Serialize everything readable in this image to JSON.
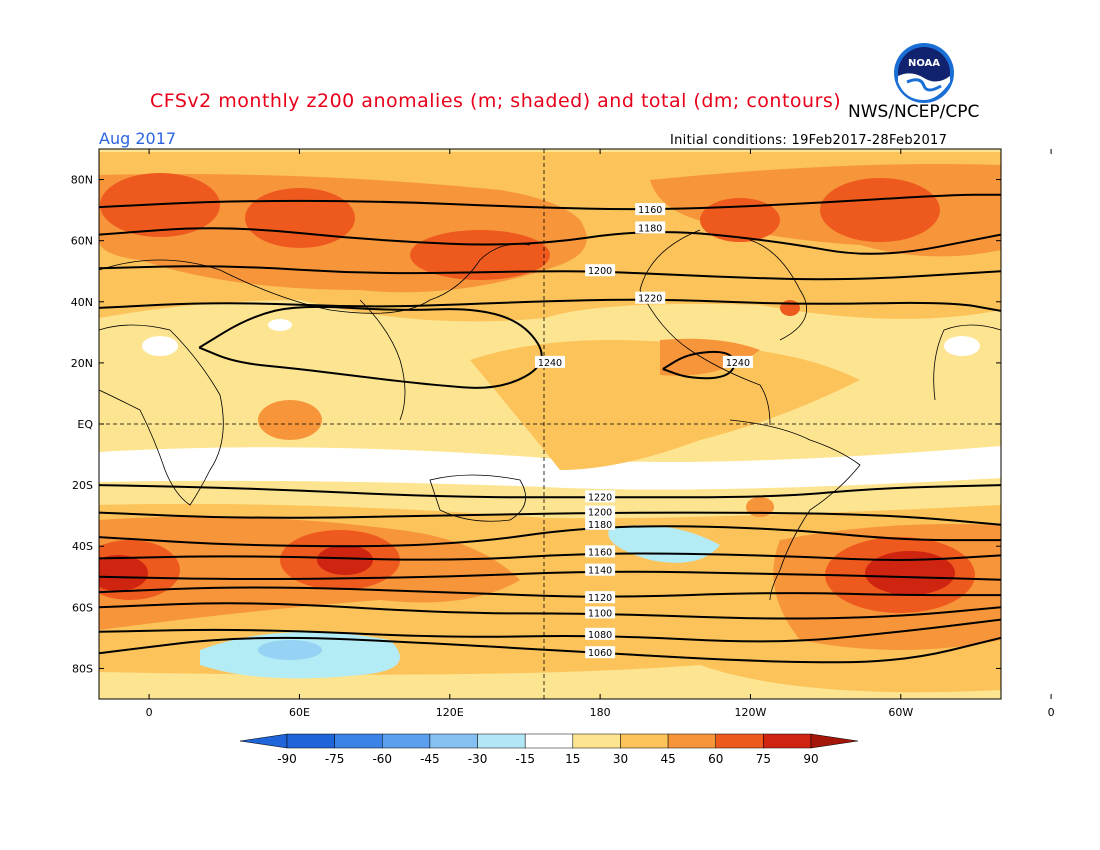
{
  "title": "CFSv2 monthly z200 anomalies (m; shaded) and total (dm; contours)",
  "agency": "NWS/NCEP/CPC",
  "valid_month": "Aug 2017",
  "initial_conditions": "Initial conditions: 19Feb2017-28Feb2017",
  "logo_text": "NOAA",
  "colors": {
    "title": "#e8001a",
    "month": "#2b63e0",
    "a15_30": "#fde490",
    "a30_45": "#fbc359",
    "a45_60": "#f7953a",
    "a60_75": "#ee5a1e",
    "a75_90": "#cf2410",
    "an15_30": "#b4ecf6",
    "an30_45": "#96d2f3",
    "neutral": "#ffffff"
  },
  "chart_data": {
    "type": "heatmap",
    "projection": "cylindrical equidistant",
    "lon_labels": [
      "0",
      "60E",
      "120E",
      "180",
      "120W",
      "60W",
      "0"
    ],
    "lat_labels": [
      "80N",
      "60N",
      "40N",
      "20N",
      "EQ",
      "20S",
      "40S",
      "60S",
      "80S"
    ],
    "colorbar": {
      "ticks": [
        "-90",
        "-75",
        "-60",
        "-45",
        "-30",
        "-15",
        "15",
        "30",
        "45",
        "60",
        "75",
        "90"
      ],
      "colors": [
        "#1f64d8",
        "#3b82e6",
        "#5b9fee",
        "#86bff2",
        "#b3e6f6",
        "#ffffff",
        "#fde490",
        "#fbc359",
        "#f7953a",
        "#ee5a1e",
        "#cf2410"
      ]
    },
    "contour_labels": [
      "1160",
      "1180",
      "1200",
      "1220",
      "1240",
      "1220",
      "1200",
      "1180",
      "1160",
      "1140",
      "1120",
      "1100",
      "1080",
      "1060"
    ],
    "contours": [
      {
        "value": "1160",
        "lon": [
          -20,
          30,
          90,
          150,
          200,
          260,
          320,
          340
        ],
        "lat": [
          71,
          73,
          73,
          71,
          70,
          72,
          75,
          75
        ]
      },
      {
        "value": "1180",
        "lon": [
          -20,
          30,
          90,
          150,
          200,
          250,
          290,
          340
        ],
        "lat": [
          62,
          65,
          60,
          58,
          64,
          60,
          54,
          62
        ]
      },
      {
        "value": "1200",
        "lon": [
          -20,
          30,
          90,
          150,
          180,
          230,
          280,
          340
        ],
        "lat": [
          51,
          52,
          49,
          50,
          50,
          48,
          47,
          50
        ]
      },
      {
        "value": "1220",
        "lon": [
          -20,
          30,
          90,
          150,
          200,
          260,
          320,
          340
        ],
        "lat": [
          38,
          40,
          38,
          40,
          41,
          39,
          40,
          37
        ]
      },
      {
        "value": "1240",
        "lon": [
          20,
          40,
          60,
          100,
          130,
          150,
          160,
          140,
          110,
          80,
          60,
          35,
          20
        ],
        "lat": [
          25,
          35,
          39,
          37,
          38,
          33,
          20,
          11,
          13,
          16,
          18,
          20,
          25
        ]
      },
      {
        "value": "1240",
        "lon": [
          205,
          215,
          230,
          235,
          230,
          215,
          205
        ],
        "lat": [
          18,
          23,
          24,
          20,
          15,
          15,
          18
        ]
      },
      {
        "value": "1220",
        "lon": [
          -20,
          40,
          120,
          180,
          250,
          290,
          340
        ],
        "lat": [
          -20,
          -21,
          -24,
          -24,
          -24,
          -21,
          -20
        ]
      },
      {
        "value": "1200",
        "lon": [
          -20,
          40,
          120,
          180,
          250,
          300,
          340
        ],
        "lat": [
          -29,
          -31,
          -30,
          -29,
          -29,
          -30,
          -33
        ]
      },
      {
        "value": "1180",
        "lon": [
          -20,
          40,
          120,
          180,
          250,
          300,
          340
        ],
        "lat": [
          -37,
          -40,
          -40,
          -33,
          -34,
          -38,
          -38
        ]
      },
      {
        "value": "1160",
        "lon": [
          -20,
          40,
          120,
          180,
          250,
          300,
          340
        ],
        "lat": [
          -44,
          -43,
          -45,
          -42,
          -43,
          -45,
          -43
        ]
      },
      {
        "value": "1140",
        "lon": [
          -20,
          40,
          120,
          180,
          250,
          300,
          340
        ],
        "lat": [
          -50,
          -51,
          -50,
          -48,
          -49,
          -50,
          -51
        ]
      },
      {
        "value": "1120",
        "lon": [
          -20,
          40,
          120,
          180,
          250,
          300,
          340
        ],
        "lat": [
          -55,
          -53,
          -55,
          -57,
          -55,
          -56,
          -56
        ]
      },
      {
        "value": "1100",
        "lon": [
          -20,
          40,
          120,
          180,
          250,
          300,
          340
        ],
        "lat": [
          -60,
          -58,
          -62,
          -62,
          -64,
          -63,
          -60
        ]
      },
      {
        "value": "1080",
        "lon": [
          -20,
          40,
          120,
          180,
          250,
          300,
          340
        ],
        "lat": [
          -68,
          -67,
          -70,
          -69,
          -72,
          -68,
          -64
        ]
      },
      {
        "value": "1060",
        "lon": [
          -20,
          40,
          120,
          180,
          250,
          300,
          340
        ],
        "lat": [
          -75,
          -69,
          -72,
          -75,
          -78,
          -78,
          -70
        ]
      }
    ]
  }
}
